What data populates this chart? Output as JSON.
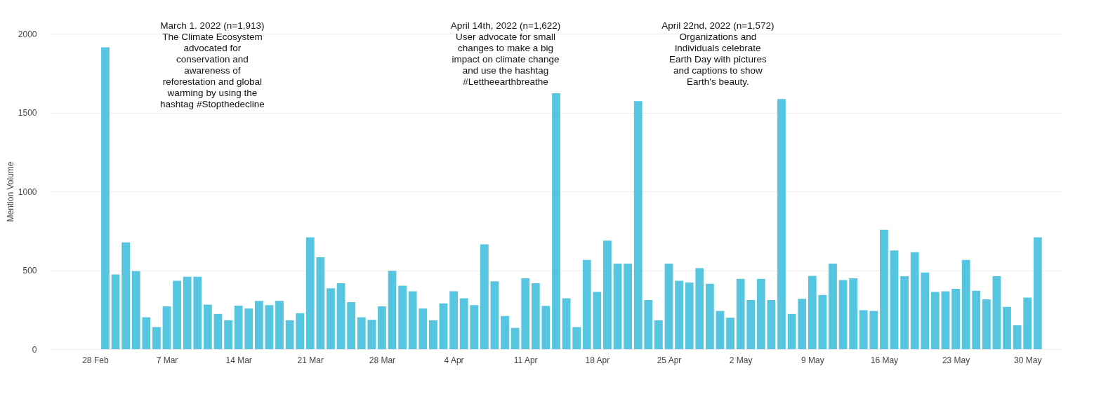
{
  "chart_data": {
    "type": "bar",
    "ylabel": "Mention Volume",
    "x": [
      "2022-03-01",
      "2022-03-02",
      "2022-03-03",
      "2022-03-04",
      "2022-03-05",
      "2022-03-06",
      "2022-03-07",
      "2022-03-08",
      "2022-03-09",
      "2022-03-10",
      "2022-03-11",
      "2022-03-12",
      "2022-03-13",
      "2022-03-14",
      "2022-03-15",
      "2022-03-16",
      "2022-03-17",
      "2022-03-18",
      "2022-03-19",
      "2022-03-20",
      "2022-03-21",
      "2022-03-22",
      "2022-03-23",
      "2022-03-24",
      "2022-03-25",
      "2022-03-26",
      "2022-03-27",
      "2022-03-28",
      "2022-03-29",
      "2022-03-30",
      "2022-03-31",
      "2022-04-01",
      "2022-04-02",
      "2022-04-03",
      "2022-04-04",
      "2022-04-05",
      "2022-04-06",
      "2022-04-07",
      "2022-04-08",
      "2022-04-09",
      "2022-04-10",
      "2022-04-11",
      "2022-04-12",
      "2022-04-13",
      "2022-04-14",
      "2022-04-15",
      "2022-04-16",
      "2022-04-17",
      "2022-04-18",
      "2022-04-19",
      "2022-04-20",
      "2022-04-21",
      "2022-04-22",
      "2022-04-23",
      "2022-04-24",
      "2022-04-25",
      "2022-04-26",
      "2022-04-27",
      "2022-04-28",
      "2022-04-29",
      "2022-04-30",
      "2022-05-01",
      "2022-05-02",
      "2022-05-03",
      "2022-05-04",
      "2022-05-05",
      "2022-05-06",
      "2022-05-07",
      "2022-05-08",
      "2022-05-09",
      "2022-05-10",
      "2022-05-11",
      "2022-05-12",
      "2022-05-13",
      "2022-05-14",
      "2022-05-15",
      "2022-05-16",
      "2022-05-17",
      "2022-05-18",
      "2022-05-19",
      "2022-05-20",
      "2022-05-21",
      "2022-05-22",
      "2022-05-23",
      "2022-05-24",
      "2022-05-25",
      "2022-05-26",
      "2022-05-27",
      "2022-05-28",
      "2022-05-29",
      "2022-05-30",
      "2022-05-31"
    ],
    "series": [
      {
        "color": "#56c5df",
        "values": [
          1913,
          473,
          677,
          494,
          202,
          140,
          271,
          433,
          459,
          459,
          282,
          223,
          183,
          276,
          258,
          306,
          279,
          306,
          183,
          228,
          709,
          582,
          386,
          418,
          298,
          202,
          186,
          271,
          497,
          402,
          367,
          258,
          183,
          290,
          367,
          322,
          279,
          665,
          430,
          210,
          135,
          449,
          418,
          274,
          1622,
          322,
          140,
          566,
          363,
          688,
          542,
          542,
          1572,
          311,
          183,
          542,
          433,
          422,
          513,
          414,
          242,
          199,
          446,
          311,
          446,
          311,
          1586,
          223,
          319,
          465,
          343,
          542,
          438,
          449,
          247,
          242,
          757,
          626,
          462,
          614,
          486,
          363,
          367,
          382,
          566,
          370,
          316,
          462,
          268,
          151,
          327,
          709
        ]
      }
    ],
    "xlim": [
      "2022-02-24",
      "2022-06-02"
    ],
    "xticks": [
      {
        "value": "2022-02-28",
        "label": "28 Feb"
      },
      {
        "value": "2022-03-07",
        "label": "7 Mar"
      },
      {
        "value": "2022-03-14",
        "label": "14 Mar"
      },
      {
        "value": "2022-03-21",
        "label": "21 Mar"
      },
      {
        "value": "2022-03-28",
        "label": "28 Mar"
      },
      {
        "value": "2022-04-04",
        "label": "4 Apr"
      },
      {
        "value": "2022-04-11",
        "label": "11 Apr"
      },
      {
        "value": "2022-04-18",
        "label": "18 Apr"
      },
      {
        "value": "2022-04-25",
        "label": "25 Apr"
      },
      {
        "value": "2022-05-02",
        "label": "2 May"
      },
      {
        "value": "2022-05-09",
        "label": "9 May"
      },
      {
        "value": "2022-05-16",
        "label": "16 May"
      },
      {
        "value": "2022-05-23",
        "label": "23 May"
      },
      {
        "value": "2022-05-30",
        "label": "30 May"
      }
    ],
    "ylim": [
      0,
      2000
    ],
    "yticks": [
      0,
      500,
      1000,
      1500,
      2000
    ],
    "grid": "y",
    "annotations": [
      "March 1. 2022 (n=1,913) The Climate Ecosystem advocated for conservation and awareness of reforestation and global warming by using the hashtag #Stopthedecline",
      "April 14th, 2022 (n=1,622) User advocate for small changes to make a big impact on climate change and use the hashtag #Lettheearthbreathe",
      "April 22nd, 2022 (n=1,572) Organizations and individuals celebrate Earth Day with pictures and captions to show Earth's beauty."
    ]
  }
}
